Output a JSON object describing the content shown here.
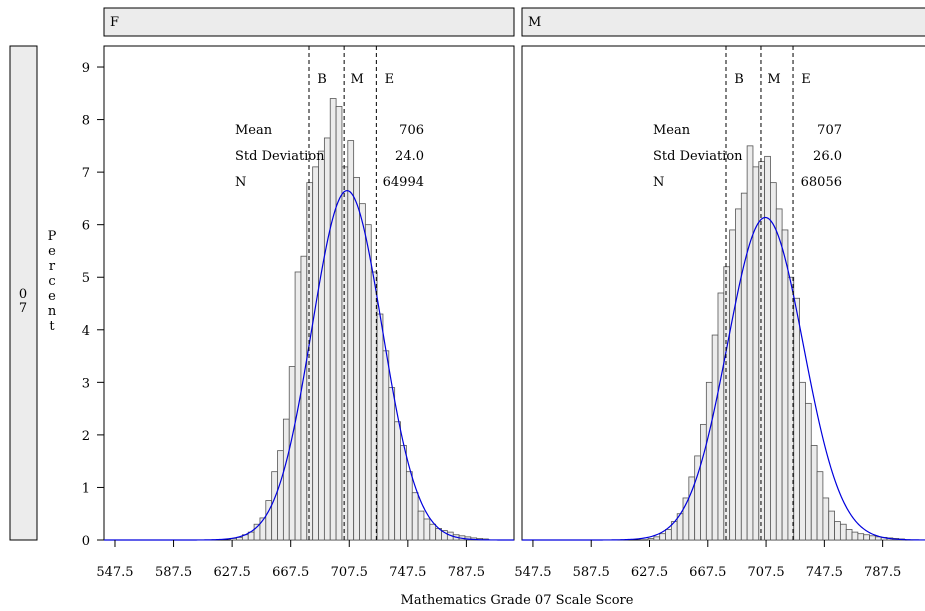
{
  "chart_data": {
    "type": "bar",
    "title": "",
    "xlabel": "Mathematics Grade 07 Scale Score",
    "ylabel": "Percent",
    "row_label": "0 7",
    "xlim": [
      540,
      820
    ],
    "ylim": [
      0,
      9.4
    ],
    "x_ticks": [
      547.5,
      587.5,
      627.5,
      667.5,
      707.5,
      747.5,
      787.5
    ],
    "y_ticks": [
      0,
      1,
      2,
      3,
      4,
      5,
      6,
      7,
      8,
      9
    ],
    "bin_centers": [
      628.5,
      632.5,
      636.5,
      640.5,
      644.5,
      648.5,
      652.5,
      656.5,
      660.5,
      664.5,
      668.5,
      672.5,
      676.5,
      680.5,
      684.5,
      688.5,
      692.5,
      696.5,
      700.5,
      704.5,
      708.5,
      712.5,
      716.5,
      720.5,
      724.5,
      728.5,
      732.5,
      736.5,
      740.5,
      744.5,
      748.5,
      752.5,
      756.5,
      760.5,
      764.5,
      768.5,
      772.5,
      776.5,
      780.5,
      784.5,
      788.5,
      792.5,
      796.5,
      800.5
    ],
    "bin_width": 4,
    "panels": [
      {
        "label": "F",
        "stats": [
          {
            "name": "Mean",
            "value": "706"
          },
          {
            "name": "Std Deviation",
            "value": "24.0"
          },
          {
            "name": "N",
            "value": "64994"
          }
        ],
        "mean": 706,
        "sd": 24.0,
        "ref_lines": [
          {
            "label": "B",
            "x": 680
          },
          {
            "label": "M",
            "x": 704
          },
          {
            "label": "E",
            "x": 726
          }
        ],
        "values": [
          0.03,
          0.05,
          0.1,
          0.15,
          0.3,
          0.42,
          0.75,
          1.3,
          1.7,
          2.3,
          3.3,
          5.1,
          5.4,
          6.8,
          7.1,
          7.4,
          7.65,
          8.4,
          8.25,
          7.1,
          7.6,
          6.9,
          6.4,
          6.0,
          5.1,
          4.3,
          3.6,
          2.9,
          2.25,
          1.8,
          1.3,
          0.9,
          0.55,
          0.4,
          0.3,
          0.22,
          0.18,
          0.15,
          0.1,
          0.08,
          0.06,
          0.04,
          0.03,
          0.02
        ]
      },
      {
        "label": "M",
        "stats": [
          {
            "name": "Mean",
            "value": "707"
          },
          {
            "name": "Std Deviation",
            "value": "26.0"
          },
          {
            "name": "N",
            "value": "68056"
          }
        ],
        "mean": 707,
        "sd": 26.0,
        "ref_lines": [
          {
            "label": "B",
            "x": 680
          },
          {
            "label": "M",
            "x": 704
          },
          {
            "label": "E",
            "x": 726
          }
        ],
        "values": [
          0.03,
          0.06,
          0.12,
          0.2,
          0.35,
          0.5,
          0.8,
          1.2,
          1.6,
          2.2,
          3.0,
          3.9,
          4.7,
          5.2,
          5.9,
          6.3,
          6.6,
          7.5,
          7.1,
          7.2,
          7.3,
          6.8,
          6.3,
          5.9,
          5.0,
          4.6,
          3.0,
          2.6,
          1.8,
          1.3,
          0.8,
          0.55,
          0.35,
          0.3,
          0.2,
          0.15,
          0.12,
          0.1,
          0.08,
          0.06,
          0.05,
          0.04,
          0.03,
          0.02
        ]
      }
    ]
  }
}
